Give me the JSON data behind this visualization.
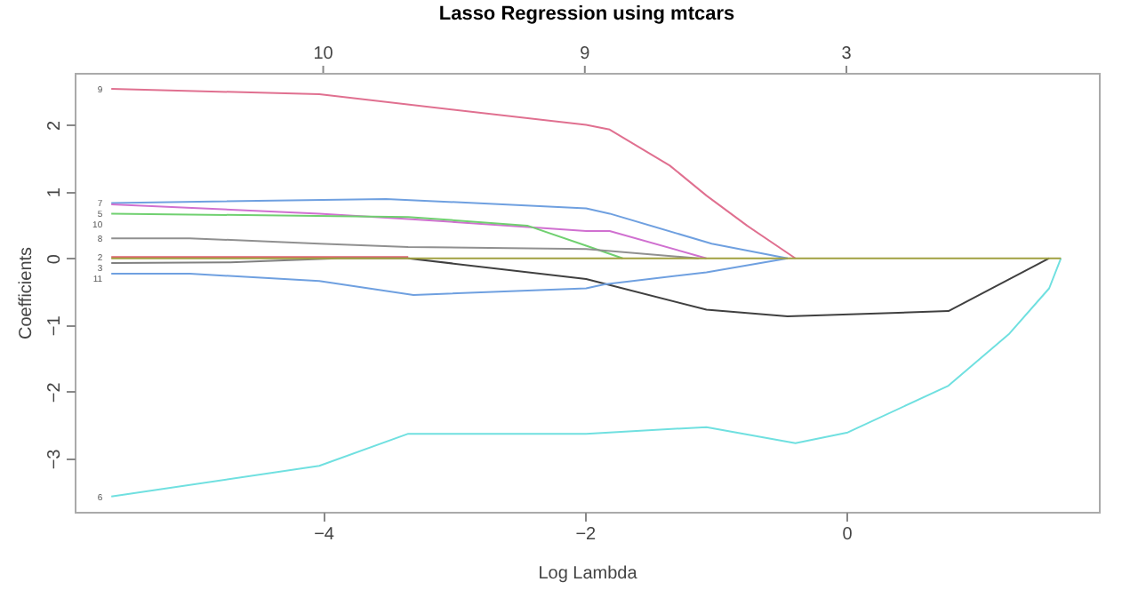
{
  "chart_data": {
    "type": "line",
    "title": "Lasso Regression using mtcars",
    "xlabel": "Log Lambda",
    "ylabel": "Coefficients",
    "xlim": [
      -5.9,
      1.93
    ],
    "xticks": [
      -4,
      -2,
      0
    ],
    "ylim": [
      -3.8,
      2.78
    ],
    "yticks": [
      -3,
      -2,
      -1,
      0,
      1,
      2
    ],
    "annotations": [
      "10",
      "9",
      "3"
    ],
    "grid": false,
    "line_style": "solid",
    "marker": "none",
    "series": [
      {
        "name": "9",
        "color": "#e07090",
        "x": [
          -5.62,
          -4.03,
          -1.99,
          -1.81,
          -1.35,
          -1.07,
          -0.76,
          -0.39
        ],
        "values": [
          2.54,
          2.46,
          2.0,
          1.93,
          1.39,
          0.94,
          0.49,
          0
        ]
      },
      {
        "name": "7",
        "color": "#6fa0e0",
        "x": [
          -5.62,
          -3.52,
          -1.99,
          -1.81,
          -1.03,
          -0.45
        ],
        "values": [
          0.83,
          0.89,
          0.75,
          0.67,
          0.22,
          0
        ]
      },
      {
        "name": "5",
        "color": "#d070d0",
        "x": [
          -5.62,
          -4.03,
          -3.35,
          -1.99,
          -1.81,
          -1.07
        ],
        "values": [
          0.81,
          0.67,
          0.59,
          0.41,
          0.41,
          0
        ]
      },
      {
        "name": "10",
        "color": "#70d070",
        "x": [
          -5.62,
          -3.35,
          -2.44,
          -1.99,
          -1.71
        ],
        "values": [
          0.67,
          0.62,
          0.49,
          0.19,
          0
        ]
      },
      {
        "name": "8",
        "color": "#909090",
        "x": [
          -5.62,
          -5.02,
          -4.03,
          -3.35,
          -1.99,
          -1.13
        ],
        "values": [
          0.3,
          0.3,
          0.22,
          0.17,
          0.14,
          0
        ]
      },
      {
        "name": "2",
        "color": "#e06070",
        "x": [
          -5.62,
          -3.35
        ],
        "values": [
          0.02,
          0.02
        ]
      },
      {
        "name": "3",
        "color": "#808080",
        "x": [
          -5.62,
          -4.71,
          -3.89,
          -3.35
        ],
        "values": [
          -0.07,
          -0.06,
          0,
          0
        ]
      },
      {
        "color": "#404040",
        "x": [
          -3.35,
          -1.99,
          -1.07,
          -0.45,
          0.78,
          1.55
        ],
        "values": [
          0,
          -0.31,
          -0.77,
          -0.87,
          -0.79,
          0
        ]
      },
      {
        "name": "11",
        "color": "#6fa0e0",
        "x": [
          -5.62,
          -5.02,
          -4.03,
          -3.31,
          -1.99,
          -1.85,
          -1.07,
          -0.45
        ],
        "values": [
          -0.23,
          -0.23,
          -0.34,
          -0.55,
          -0.45,
          -0.39,
          -0.21,
          0
        ]
      },
      {
        "name": "6",
        "color": "#70e0e0",
        "x": [
          -5.62,
          -4.03,
          -3.35,
          -1.99,
          -1.07,
          -0.39,
          0.01,
          0.78,
          1.24,
          1.55,
          1.64
        ],
        "values": [
          -3.57,
          -3.11,
          -2.63,
          -2.63,
          -2.53,
          -2.77,
          -2.61,
          -1.91,
          -1.14,
          -0.45,
          0
        ]
      },
      {
        "color": "#a0a040",
        "x": [
          -5.62,
          1.64
        ],
        "values": [
          0,
          0
        ]
      }
    ]
  }
}
